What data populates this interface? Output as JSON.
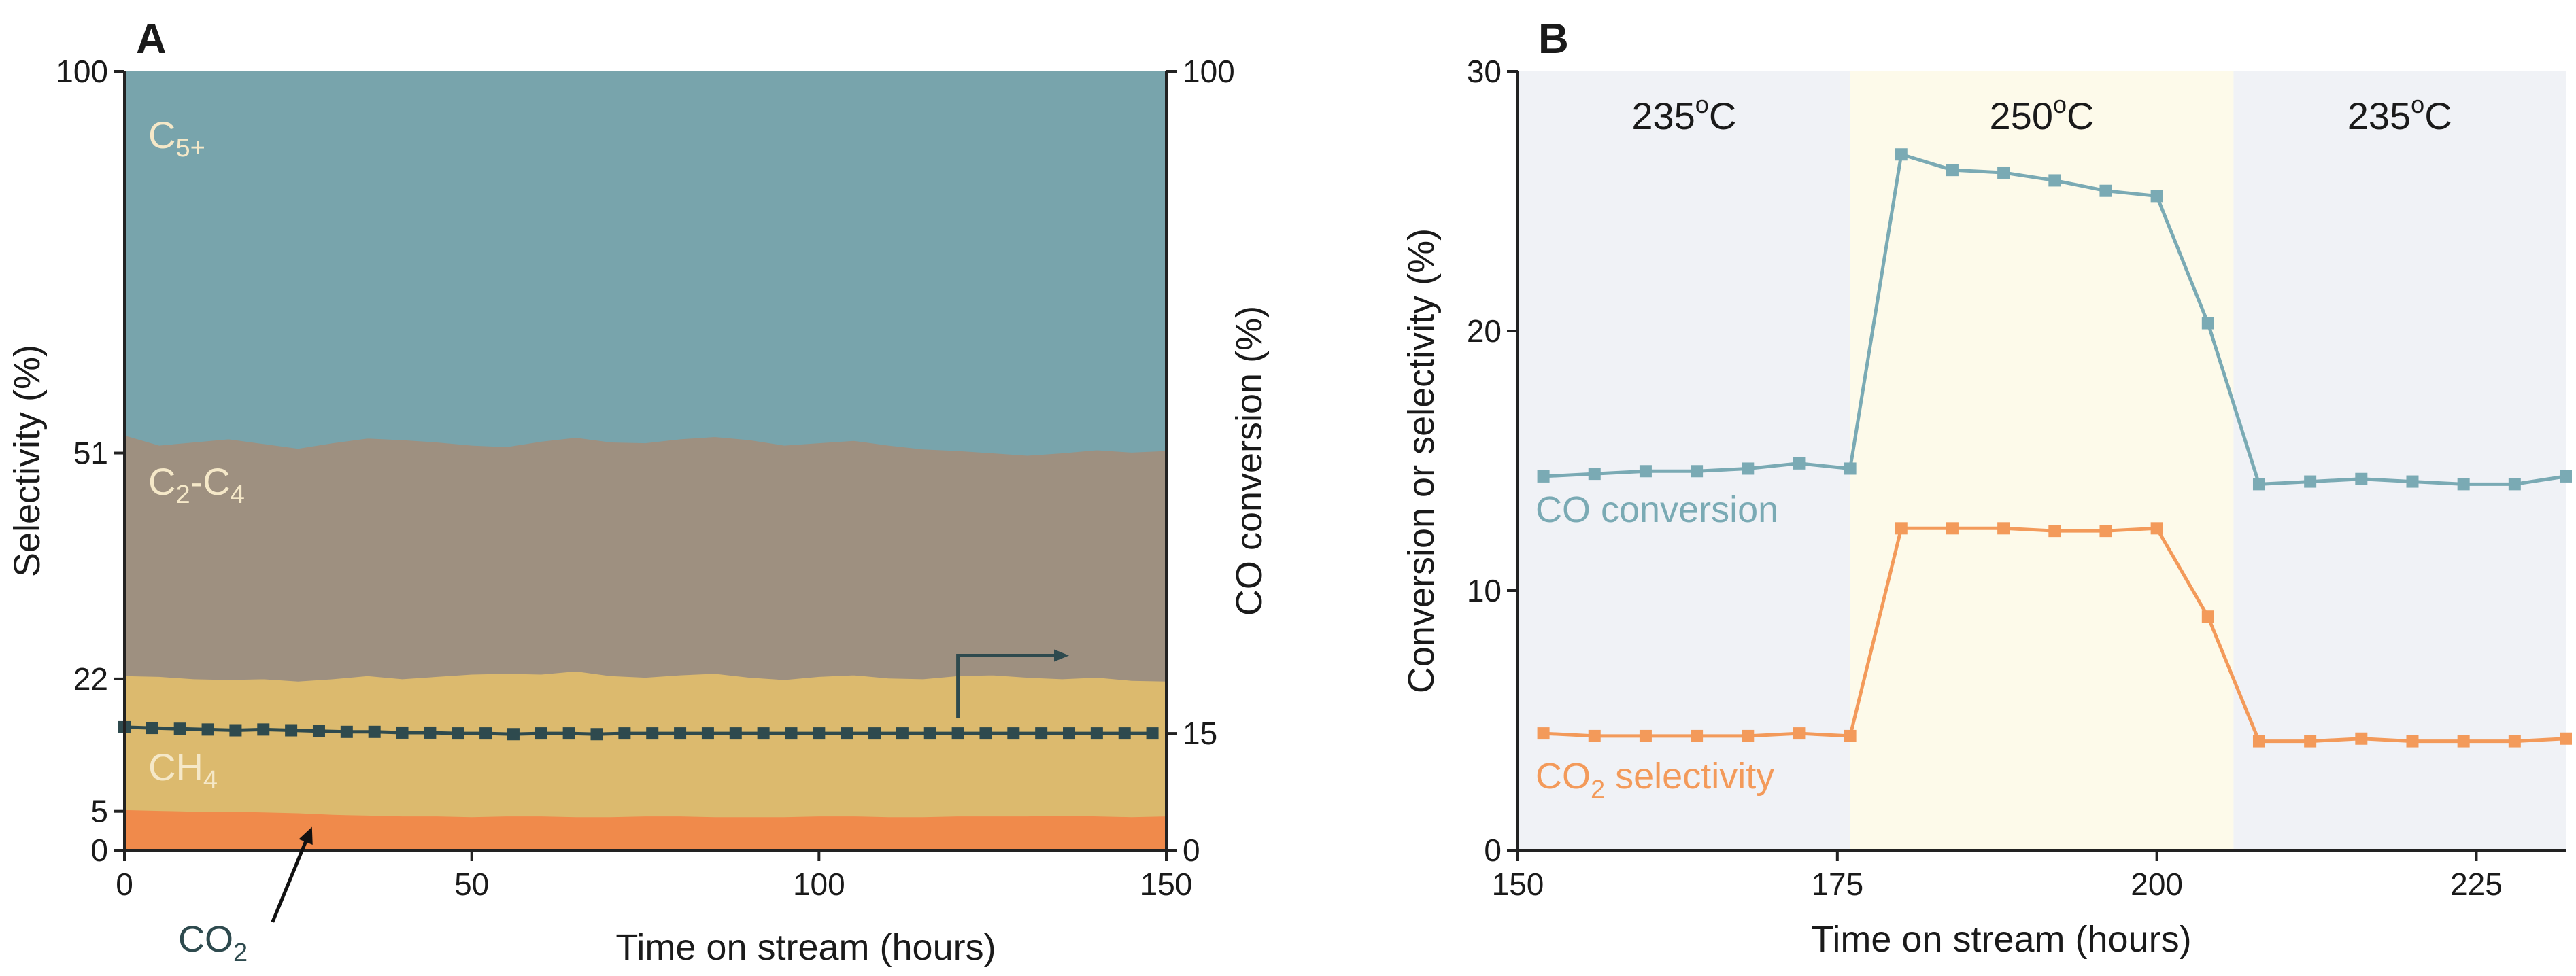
{
  "chart_data": [
    {
      "panel": "A",
      "type": "area",
      "xlabel": "Time on stream (hours)",
      "ylabel": "Selectivity (%)",
      "y2label": "CO conversion (%)",
      "xlim": [
        0,
        150
      ],
      "ylim": [
        0,
        100
      ],
      "y2lim": [
        0,
        100
      ],
      "xticks": [
        "0",
        "50",
        "100",
        "150"
      ],
      "xtick_values": [
        0,
        50,
        100,
        150
      ],
      "yticks": [
        "0",
        "5",
        "22",
        "51",
        "100"
      ],
      "ytick_values": [
        0,
        5,
        22,
        51,
        100
      ],
      "y2ticks": [
        "0",
        "15",
        "100"
      ],
      "y2tick_values": [
        0,
        15,
        100
      ],
      "x": [
        0,
        5,
        10,
        15,
        20,
        25,
        30,
        35,
        40,
        45,
        50,
        55,
        60,
        65,
        70,
        75,
        80,
        85,
        90,
        95,
        100,
        105,
        110,
        115,
        120,
        125,
        130,
        135,
        140,
        145,
        150
      ],
      "boundaries": {
        "co2_top": [
          5.2,
          5.1,
          5.0,
          5.0,
          4.9,
          4.8,
          4.6,
          4.5,
          4.4,
          4.4,
          4.3,
          4.4,
          4.4,
          4.3,
          4.3,
          4.4,
          4.4,
          4.3,
          4.3,
          4.3,
          4.4,
          4.4,
          4.3,
          4.3,
          4.4,
          4.4,
          4.4,
          4.5,
          4.4,
          4.3,
          4.4
        ],
        "ch4_top": [
          22.4,
          22.3,
          22.0,
          21.9,
          22.0,
          21.7,
          22.0,
          22.4,
          22.0,
          22.3,
          22.6,
          22.7,
          22.6,
          23.0,
          22.4,
          22.2,
          22.5,
          22.7,
          22.2,
          21.9,
          22.3,
          22.5,
          22.1,
          22.0,
          22.4,
          22.5,
          22.2,
          22.0,
          22.2,
          21.8,
          21.7
        ],
        "c2c4_top": [
          53.3,
          52.0,
          52.4,
          52.8,
          52.2,
          51.6,
          52.3,
          52.9,
          52.7,
          52.4,
          52.0,
          51.8,
          52.5,
          53.0,
          52.4,
          52.3,
          52.8,
          53.1,
          52.7,
          52.0,
          52.3,
          52.6,
          52.0,
          51.5,
          51.3,
          51.0,
          50.7,
          51.0,
          51.4,
          51.1,
          51.3
        ]
      },
      "series": [
        {
          "name": "CO2",
          "label": "CO",
          "subscript": "2",
          "color": "#f08a4b"
        },
        {
          "name": "CH4",
          "label": "CH",
          "subscript": "4",
          "color": "#dcba6e"
        },
        {
          "name": "C2-C4",
          "label": "C",
          "subscript": "2",
          "label_mid": "-C",
          "subscript2": "4",
          "color": "#9e9080"
        },
        {
          "name": "C5+",
          "label": "C",
          "subscript": "5+",
          "color": "#78a4ac"
        }
      ],
      "co_conversion": {
        "name": "CO conversion",
        "axis": "right",
        "color": "#2e4a4e",
        "x": [
          0,
          4,
          8,
          12,
          16,
          20,
          24,
          28,
          32,
          36,
          40,
          44,
          48,
          52,
          56,
          60,
          64,
          68,
          72,
          76,
          80,
          84,
          88,
          92,
          96,
          100,
          104,
          108,
          112,
          116,
          120,
          124,
          128,
          132,
          136,
          140,
          144,
          148
        ],
        "values": [
          15.8,
          15.7,
          15.6,
          15.5,
          15.4,
          15.5,
          15.4,
          15.3,
          15.2,
          15.2,
          15.1,
          15.1,
          15.0,
          15.0,
          14.9,
          15.0,
          15.0,
          14.9,
          15.0,
          15.0,
          15.0,
          15.0,
          15.0,
          15.0,
          15.0,
          15.0,
          15.0,
          15.0,
          15.0,
          15.0,
          15.0,
          15.0,
          15.0,
          15.0,
          15.0,
          15.0,
          15.0,
          15.0
        ]
      },
      "annotations": {
        "co2_arrow_label": "CO",
        "co2_arrow_label_sub": "2",
        "arrow_points_to_x": 27,
        "arrow_points_to_y": 3,
        "right_arrow_from_x": 120,
        "right_arrow_to_x": 136,
        "right_arrow_y_bottom": 17,
        "right_arrow_y_top": 25
      }
    },
    {
      "panel": "B",
      "type": "line",
      "xlabel": "Time on stream (hours)",
      "ylabel": "Conversion or  selectivity (%)",
      "xlim": [
        150,
        232
      ],
      "ylim": [
        0,
        30
      ],
      "xticks": [
        "150",
        "175",
        "200",
        "225"
      ],
      "xtick_values": [
        150,
        175,
        200,
        225
      ],
      "yticks": [
        "0",
        "10",
        "20",
        "30"
      ],
      "ytick_values": [
        0,
        10,
        20,
        30
      ],
      "temperature_regions": [
        {
          "x0": 150,
          "x1": 176,
          "label": "235",
          "sup": "o",
          "unit": "C",
          "color": "#f0f2f6"
        },
        {
          "x0": 176,
          "x1": 206,
          "label": "250",
          "sup": "o",
          "unit": "C",
          "color": "#fdfaea"
        },
        {
          "x0": 206,
          "x1": 232,
          "label": "235",
          "sup": "o",
          "unit": "C",
          "color": "#f0f2f6"
        }
      ],
      "series": [
        {
          "name": "CO conversion",
          "label": "CO conversion",
          "color": "#7aaab4",
          "x": [
            152,
            156,
            160,
            164,
            168,
            172,
            176,
            180,
            184,
            188,
            192,
            196,
            200,
            204,
            208,
            212,
            216,
            220,
            224,
            228,
            232
          ],
          "y": [
            14.4,
            14.5,
            14.6,
            14.6,
            14.7,
            14.9,
            14.7,
            26.8,
            26.2,
            26.1,
            25.8,
            25.4,
            25.2,
            20.3,
            14.1,
            14.2,
            14.3,
            14.2,
            14.1,
            14.1,
            14.4
          ]
        },
        {
          "name": "CO2 selectivity",
          "label": "CO",
          "label_sub": "2",
          "label_rest": " selectivity",
          "color": "#f39a5a",
          "x": [
            152,
            156,
            160,
            164,
            168,
            172,
            176,
            180,
            184,
            188,
            192,
            196,
            200,
            204,
            208,
            212,
            216,
            220,
            224,
            228,
            232
          ],
          "y": [
            4.5,
            4.4,
            4.4,
            4.4,
            4.4,
            4.5,
            4.4,
            12.4,
            12.4,
            12.4,
            12.3,
            12.3,
            12.4,
            9.0,
            4.2,
            4.2,
            4.3,
            4.2,
            4.2,
            4.2,
            4.3
          ]
        }
      ]
    }
  ]
}
